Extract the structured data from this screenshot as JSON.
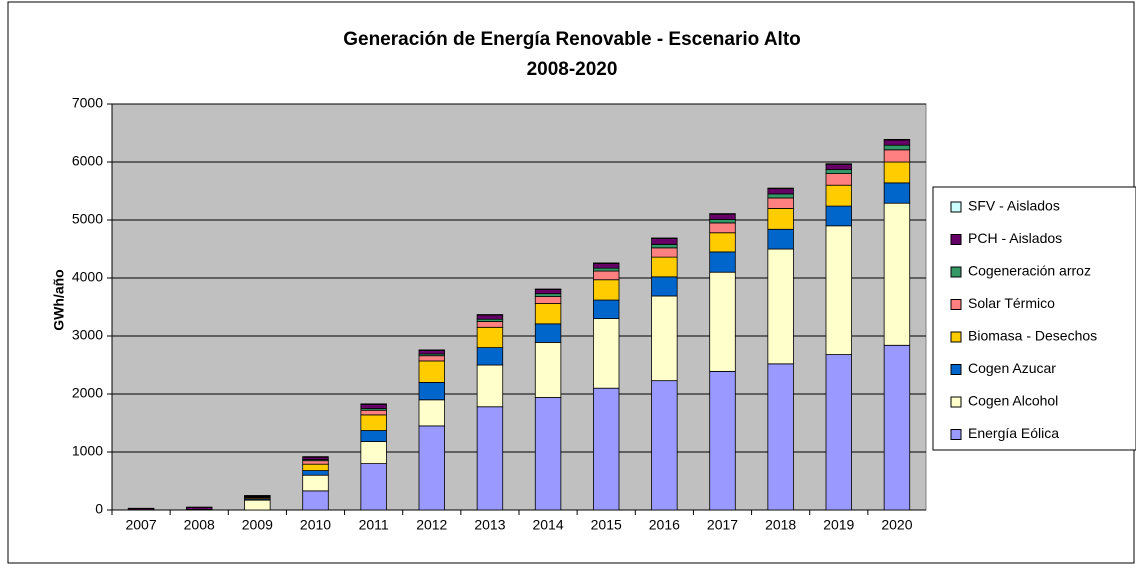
{
  "chart_data": {
    "type": "stacked_bar",
    "title": "Generación de Energía Renovable - Escenario Alto",
    "subtitle": "2008-2020",
    "y_label": "GWh/año",
    "categories": [
      "2007",
      "2008",
      "2009",
      "2010",
      "2011",
      "2012",
      "2013",
      "2014",
      "2015",
      "2016",
      "2017",
      "2018",
      "2019",
      "2020"
    ],
    "series": [
      {
        "name": "Energía Eólica",
        "color": "#9999ff",
        "values": [
          0,
          0,
          0,
          330,
          800,
          1450,
          1780,
          1940,
          2100,
          2230,
          2390,
          2520,
          2680,
          2840
        ]
      },
      {
        "name": "Cogen Alcohol",
        "color": "#ffffcc",
        "values": [
          0,
          0,
          170,
          270,
          380,
          450,
          720,
          950,
          1200,
          1460,
          1710,
          1980,
          2220,
          2450
        ]
      },
      {
        "name": "Cogen Azucar",
        "color": "#0066cc",
        "values": [
          0,
          0,
          20,
          80,
          190,
          300,
          300,
          320,
          320,
          330,
          350,
          340,
          340,
          350
        ]
      },
      {
        "name": "Biomasa - Desechos",
        "color": "#ffcc00",
        "values": [
          0,
          0,
          20,
          110,
          270,
          370,
          350,
          350,
          350,
          340,
          330,
          360,
          360,
          360
        ]
      },
      {
        "name": "Solar Térmico",
        "color": "#ff8080",
        "values": [
          5,
          10,
          15,
          60,
          80,
          90,
          100,
          120,
          150,
          160,
          170,
          180,
          200,
          210
        ]
      },
      {
        "name": "Cogeneración arroz",
        "color": "#339966",
        "values": [
          0,
          0,
          5,
          20,
          30,
          30,
          40,
          50,
          50,
          60,
          60,
          70,
          70,
          80
        ]
      },
      {
        "name": "PCH - Aislados",
        "color": "#660066",
        "values": [
          20,
          35,
          15,
          40,
          70,
          60,
          70,
          70,
          80,
          100,
          90,
          90,
          90,
          90
        ]
      },
      {
        "name": "SFV - Aislados",
        "color": "#ccffff",
        "values": [
          5,
          5,
          5,
          10,
          10,
          10,
          10,
          10,
          10,
          10,
          10,
          10,
          10,
          10
        ]
      }
    ],
    "ylim": [
      0,
      7000
    ],
    "yticks": [
      0,
      1000,
      2000,
      3000,
      4000,
      5000,
      6000,
      7000
    ],
    "grid": true
  }
}
